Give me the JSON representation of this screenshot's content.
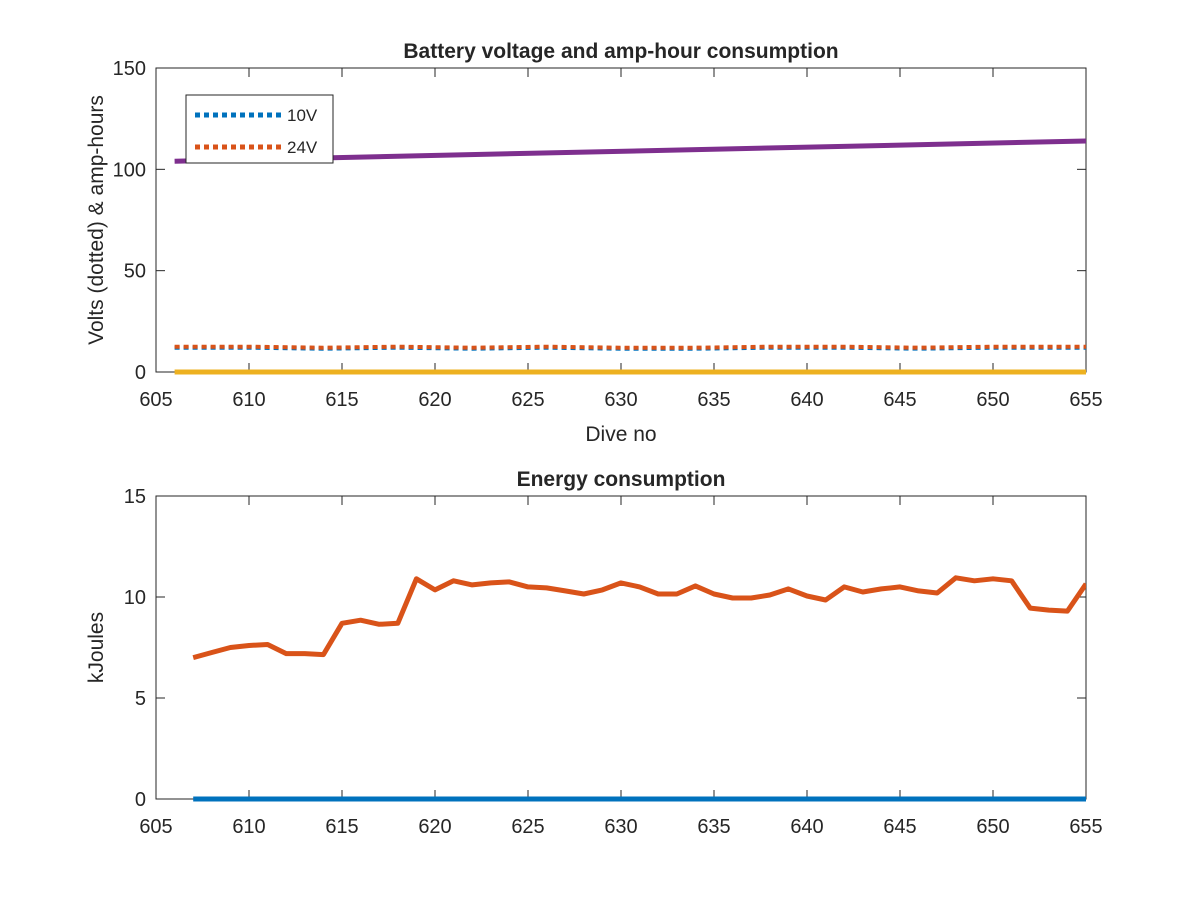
{
  "chart_data": [
    {
      "type": "line",
      "title": "Battery voltage and amp-hour consumption",
      "xlabel": "Dive no",
      "ylabel": "Volts (dotted) & amp-hours",
      "xlim": [
        605,
        655
      ],
      "ylim": [
        0,
        150
      ],
      "xticks": [
        "605",
        "610",
        "615",
        "620",
        "625",
        "630",
        "635",
        "640",
        "645",
        "650",
        "655"
      ],
      "yticks": [
        "0",
        "50",
        "100",
        "150"
      ],
      "grid": false,
      "legend_position": "top-left",
      "series": [
        {
          "name": "10V",
          "color": "#0072BD",
          "style": "dotted",
          "x": [
            606,
            610,
            614,
            618,
            622,
            626,
            630,
            634,
            638,
            642,
            646,
            650,
            655
          ],
          "y": [
            12,
            12,
            11.5,
            12,
            11.5,
            12,
            11.5,
            11.5,
            12,
            12,
            11.5,
            12,
            12
          ]
        },
        {
          "name": "24V",
          "color": "#D95319",
          "style": "dotted",
          "x": [
            606,
            610,
            614,
            618,
            622,
            626,
            630,
            634,
            638,
            642,
            646,
            650,
            655
          ],
          "y": [
            12.5,
            12.5,
            12,
            12.5,
            12,
            12.5,
            12,
            12,
            12.5,
            12.5,
            12,
            12.5,
            12.5
          ]
        },
        {
          "color": "#7E2F8E",
          "style": "solid",
          "x": [
            606,
            655
          ],
          "y": [
            104,
            114
          ]
        },
        {
          "color": "#EDB120",
          "style": "solid",
          "x": [
            606,
            655
          ],
          "y": [
            0,
            0
          ]
        }
      ]
    },
    {
      "type": "line",
      "title": "Energy consumption",
      "xlabel": "",
      "ylabel": "kJoules",
      "xlim": [
        605,
        655
      ],
      "ylim": [
        0,
        15
      ],
      "xticks": [
        "605",
        "610",
        "615",
        "620",
        "625",
        "630",
        "635",
        "640",
        "645",
        "650",
        "655"
      ],
      "yticks": [
        "0",
        "5",
        "10",
        "15"
      ],
      "grid": false,
      "series": [
        {
          "color": "#D95319",
          "style": "solid",
          "x": [
            607,
            608,
            609,
            610,
            611,
            612,
            613,
            614,
            615,
            616,
            617,
            618,
            619,
            620,
            621,
            622,
            623,
            624,
            625,
            626,
            627,
            628,
            629,
            630,
            631,
            632,
            633,
            634,
            635,
            636,
            637,
            638,
            639,
            640,
            641,
            642,
            643,
            644,
            645,
            646,
            647,
            648,
            649,
            650,
            651,
            652,
            653,
            654,
            655
          ],
          "y": [
            7.0,
            7.25,
            7.5,
            7.6,
            7.65,
            7.2,
            7.2,
            7.15,
            8.7,
            8.85,
            8.65,
            8.7,
            10.9,
            10.35,
            10.8,
            10.6,
            10.7,
            10.75,
            10.5,
            10.45,
            10.3,
            10.15,
            10.35,
            10.7,
            10.5,
            10.15,
            10.15,
            10.55,
            10.15,
            9.95,
            9.95,
            10.1,
            10.4,
            10.05,
            9.85,
            10.5,
            10.25,
            10.4,
            10.5,
            10.3,
            10.2,
            10.95,
            10.8,
            10.9,
            10.8,
            9.45,
            9.35,
            9.3,
            10.65
          ]
        },
        {
          "color": "#0072BD",
          "style": "solid",
          "x": [
            607,
            655
          ],
          "y": [
            0,
            0
          ]
        }
      ]
    }
  ]
}
